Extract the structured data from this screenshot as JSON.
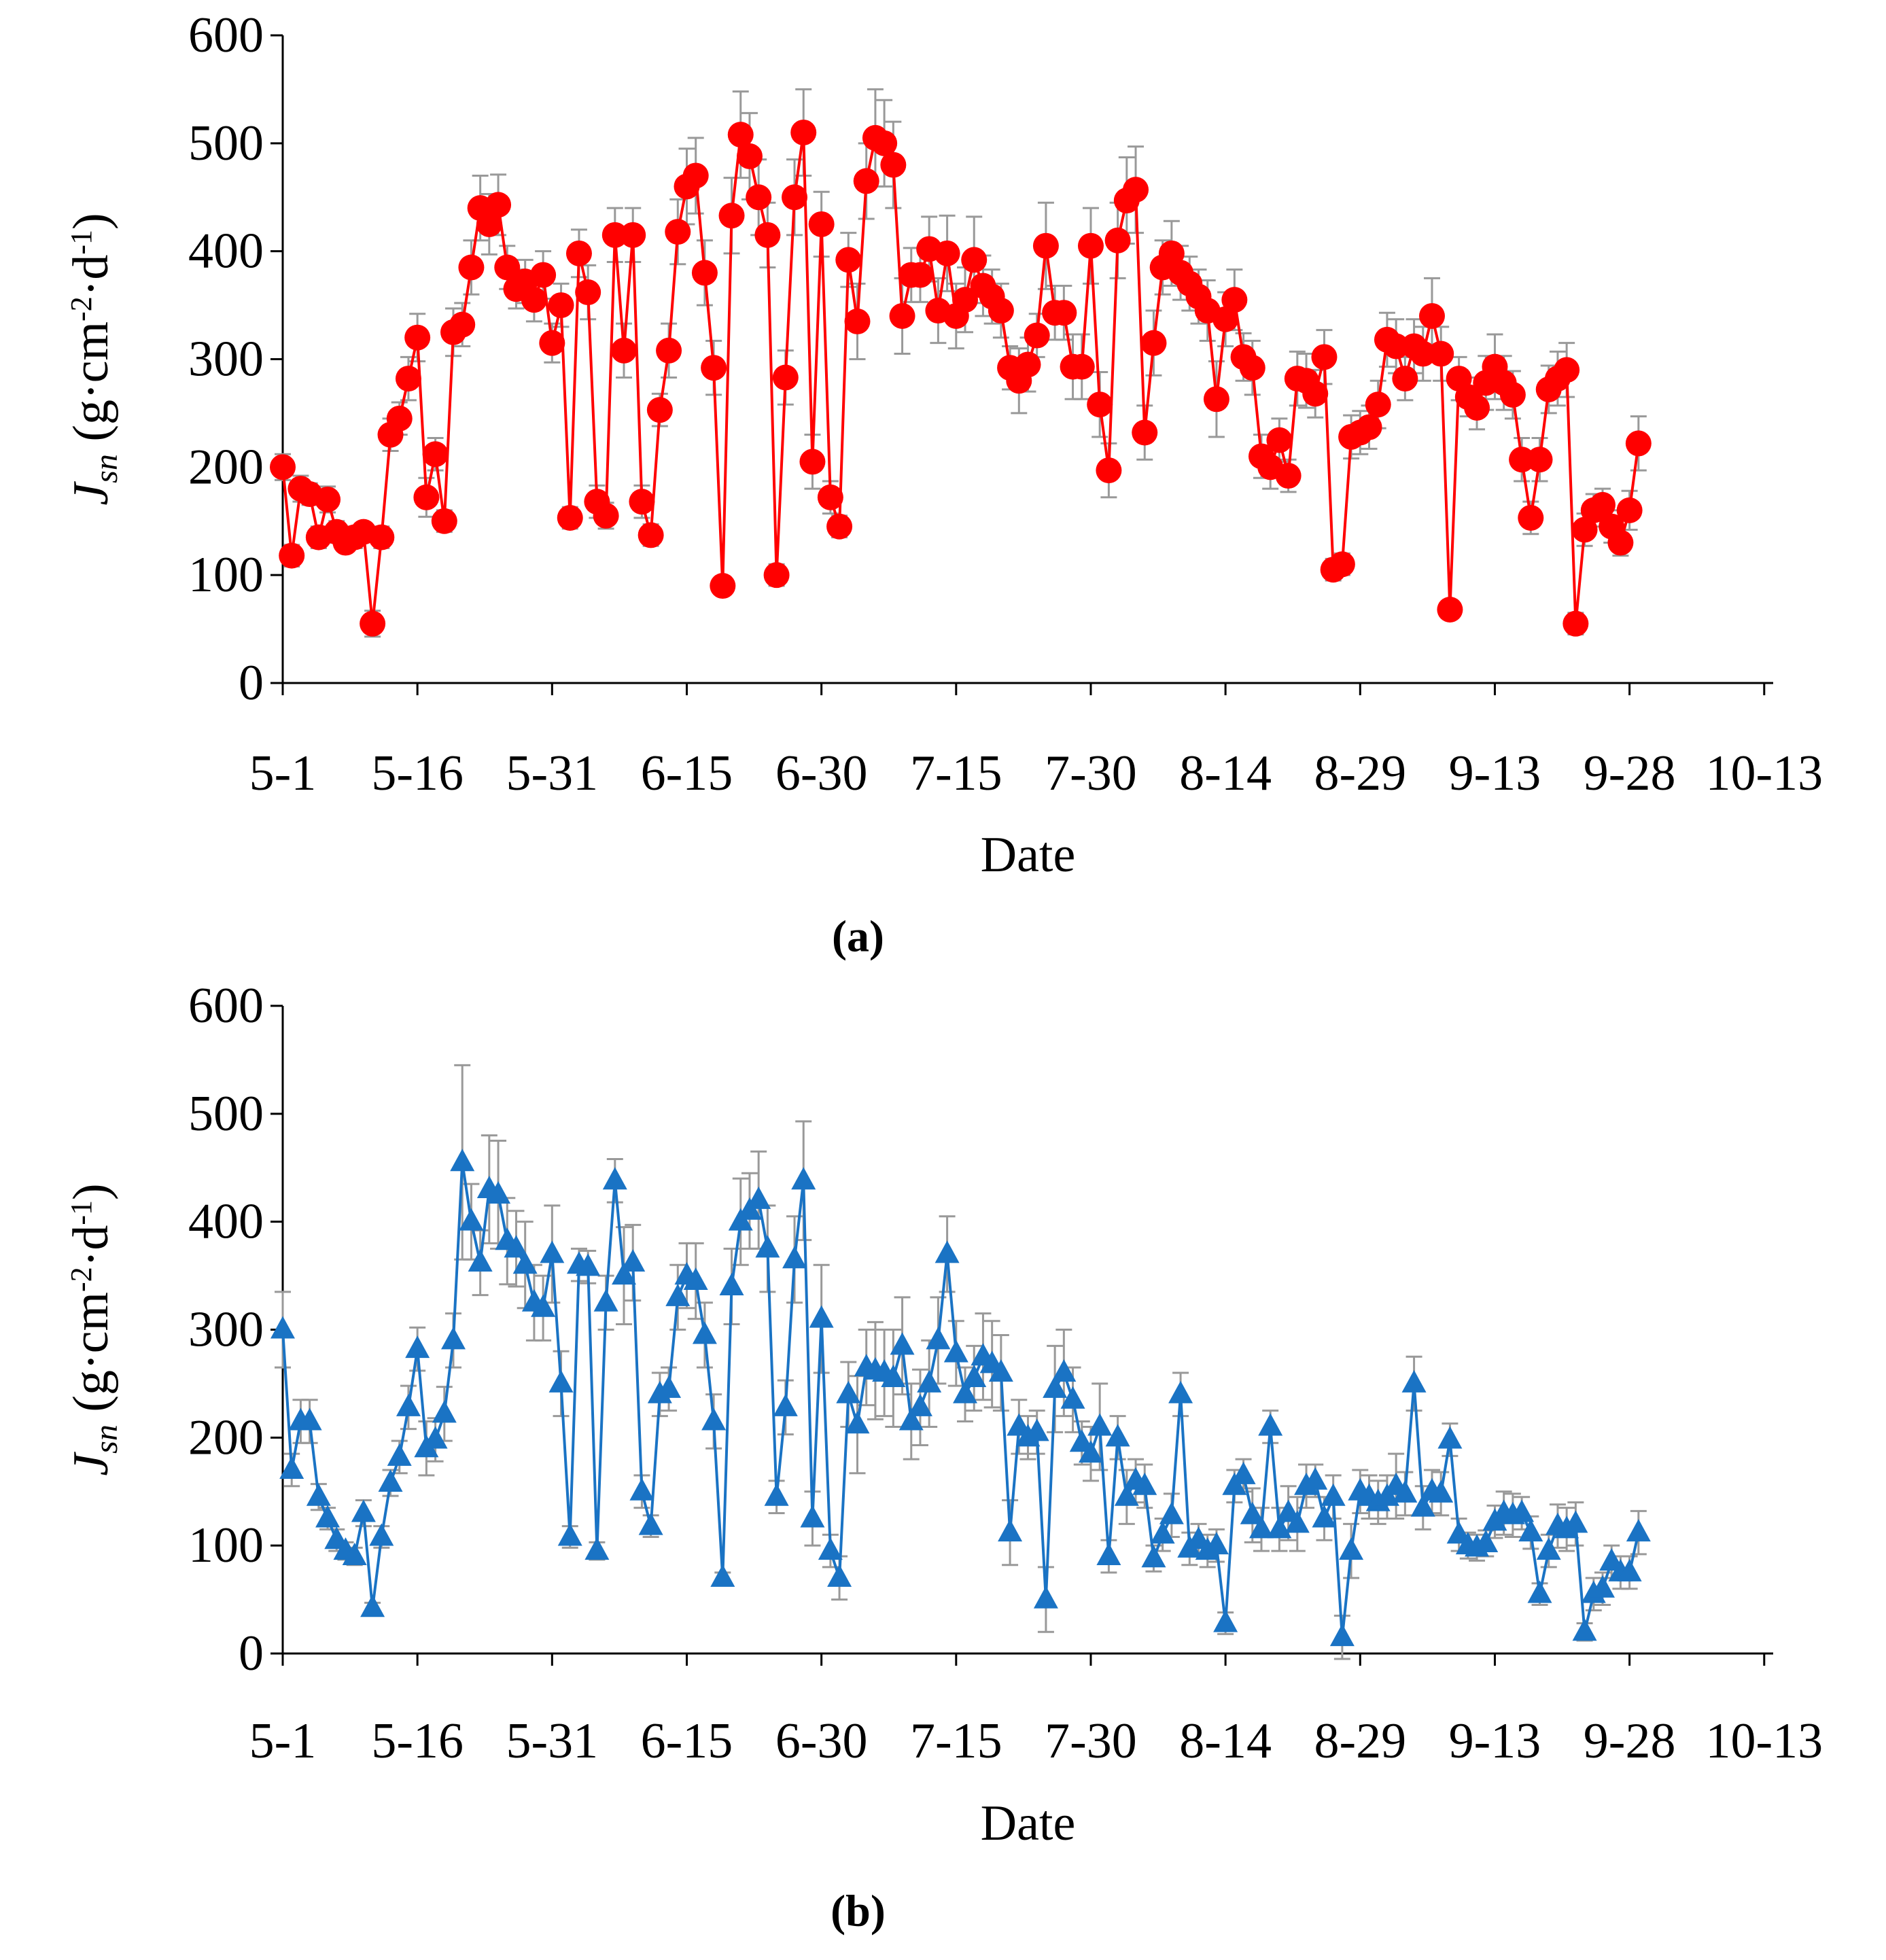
{
  "chart_data": [
    {
      "type": "line",
      "caption": "(a)",
      "xlabel": "Date",
      "ylabel": [
        "J",
        "sn",
        " (g·cm",
        "-2",
        "·d",
        "-1",
        ")"
      ],
      "xlim": [
        0,
        166
      ],
      "ylim": [
        0,
        600
      ],
      "yticks": [
        0,
        100,
        200,
        300,
        400,
        500,
        600
      ],
      "xticks": [
        {
          "value": 0,
          "label": "5-1"
        },
        {
          "value": 15,
          "label": "5-16"
        },
        {
          "value": 30,
          "label": "5-31"
        },
        {
          "value": 45,
          "label": "6-15"
        },
        {
          "value": 60,
          "label": "6-30"
        },
        {
          "value": 75,
          "label": "7-15"
        },
        {
          "value": 90,
          "label": "7-30"
        },
        {
          "value": 105,
          "label": "8-14"
        },
        {
          "value": 120,
          "label": "8-29"
        },
        {
          "value": 135,
          "label": "9-13"
        },
        {
          "value": 150,
          "label": "9-28"
        },
        {
          "value": 165,
          "label": "10-13"
        }
      ],
      "x": [
        0,
        1,
        2,
        3,
        4,
        5,
        6,
        7,
        8,
        9,
        10,
        11,
        12,
        13,
        14,
        15,
        16,
        17,
        18,
        19,
        20,
        21,
        22,
        23,
        24,
        25,
        26,
        27,
        28,
        29,
        30,
        31,
        32,
        33,
        34,
        35,
        36,
        37,
        38,
        39,
        40,
        41,
        42,
        43,
        44,
        45,
        46,
        47,
        48,
        49,
        50,
        51,
        52,
        53,
        54,
        55,
        56,
        57,
        58,
        59,
        60,
        61,
        62,
        63,
        64,
        65,
        66,
        67,
        68,
        69,
        70,
        71,
        72,
        73,
        74,
        75,
        76,
        77,
        78,
        79,
        80,
        81,
        82,
        83,
        84,
        85,
        86,
        87,
        88,
        89,
        90,
        91,
        92,
        93,
        94,
        95,
        96,
        97,
        98,
        99,
        100,
        101,
        102,
        103,
        104,
        105,
        106,
        107,
        108,
        109,
        110,
        111,
        112,
        113,
        114,
        115,
        116,
        117,
        118,
        119,
        120,
        121,
        122,
        123,
        124,
        125,
        126,
        127,
        128,
        129,
        130,
        131,
        132,
        133,
        134,
        135,
        136,
        137,
        138,
        139,
        140,
        141,
        142,
        143,
        144,
        145,
        146,
        147,
        148,
        149,
        150,
        151
      ],
      "series": [
        {
          "color": "#ff0000",
          "marker": "circle",
          "error_color": "#999999",
          "values": [
            200,
            118,
            180,
            175,
            135,
            170,
            140,
            130,
            135,
            140,
            55,
            135,
            230,
            245,
            282,
            320,
            172,
            212,
            150,
            325,
            332,
            385,
            440,
            425,
            443,
            385,
            365,
            372,
            355,
            378,
            315,
            350,
            153,
            398,
            362,
            168,
            155,
            415,
            308,
            415,
            168,
            137,
            253,
            308,
            418,
            460,
            470,
            380,
            292,
            90,
            433,
            508,
            488,
            450,
            415,
            100,
            283,
            450,
            510,
            205,
            425,
            172,
            145,
            392,
            335,
            465,
            505,
            500,
            480,
            340,
            378,
            378,
            402,
            345,
            398,
            340,
            355,
            392,
            368,
            358,
            345,
            292,
            280,
            295,
            322,
            405,
            343,
            343,
            293,
            293,
            405,
            258,
            197,
            410,
            447,
            457,
            232,
            315,
            385,
            398,
            380,
            370,
            358,
            345,
            263,
            337,
            355,
            302,
            292,
            210,
            200,
            225,
            192,
            282,
            280,
            268,
            302,
            105,
            110,
            228,
            232,
            237,
            258,
            318,
            312,
            282,
            312,
            305,
            340,
            305,
            68,
            282,
            265,
            255,
            278,
            293,
            278,
            267,
            207,
            153,
            207,
            272,
            282,
            290,
            55,
            142,
            160,
            165,
            145,
            130,
            160,
            222
          ],
          "errors": [
            12,
            10,
            12,
            10,
            10,
            12,
            10,
            8,
            10,
            8,
            12,
            10,
            15,
            15,
            20,
            22,
            18,
            15,
            10,
            22,
            20,
            25,
            30,
            28,
            28,
            20,
            18,
            20,
            20,
            22,
            18,
            20,
            10,
            22,
            25,
            15,
            12,
            25,
            25,
            25,
            15,
            10,
            15,
            25,
            30,
            35,
            35,
            30,
            25,
            8,
            35,
            40,
            40,
            35,
            30,
            10,
            25,
            35,
            40,
            25,
            30,
            15,
            10,
            25,
            35,
            35,
            45,
            40,
            40,
            35,
            25,
            25,
            30,
            30,
            35,
            30,
            30,
            40,
            28,
            25,
            25,
            20,
            30,
            25,
            20,
            40,
            25,
            25,
            30,
            30,
            35,
            30,
            25,
            35,
            40,
            40,
            25,
            30,
            25,
            30,
            25,
            25,
            25,
            28,
            35,
            25,
            28,
            22,
            25,
            20,
            20,
            20,
            15,
            25,
            25,
            22,
            25,
            10,
            10,
            20,
            20,
            20,
            22,
            25,
            25,
            20,
            25,
            25,
            35,
            25,
            8,
            20,
            18,
            20,
            25,
            30,
            25,
            22,
            20,
            15,
            20,
            22,
            25,
            25,
            10,
            15,
            15,
            15,
            15,
            12,
            18,
            25
          ]
        }
      ]
    },
    {
      "type": "line",
      "caption": "(b)",
      "xlabel": "Date",
      "ylabel": [
        "J",
        "sn",
        " (g·cm",
        "-2",
        "·d",
        "-1",
        ")"
      ],
      "xlim": [
        0,
        166
      ],
      "ylim": [
        0,
        600
      ],
      "yticks": [
        0,
        100,
        200,
        300,
        400,
        500,
        600
      ],
      "xticks": [
        {
          "value": 0,
          "label": "5-1"
        },
        {
          "value": 15,
          "label": "5-16"
        },
        {
          "value": 30,
          "label": "5-31"
        },
        {
          "value": 45,
          "label": "6-15"
        },
        {
          "value": 60,
          "label": "6-30"
        },
        {
          "value": 75,
          "label": "7-15"
        },
        {
          "value": 90,
          "label": "7-30"
        },
        {
          "value": 105,
          "label": "8-14"
        },
        {
          "value": 120,
          "label": "8-29"
        },
        {
          "value": 135,
          "label": "9-13"
        },
        {
          "value": 150,
          "label": "9-28"
        },
        {
          "value": 165,
          "label": "10-13"
        }
      ],
      "x": [
        0,
        1,
        2,
        3,
        4,
        5,
        6,
        7,
        8,
        9,
        10,
        11,
        12,
        13,
        14,
        15,
        16,
        17,
        18,
        19,
        20,
        21,
        22,
        23,
        24,
        25,
        26,
        27,
        28,
        29,
        30,
        31,
        32,
        33,
        34,
        35,
        36,
        37,
        38,
        39,
        40,
        41,
        42,
        43,
        44,
        45,
        46,
        47,
        48,
        49,
        50,
        51,
        52,
        53,
        54,
        55,
        56,
        57,
        58,
        59,
        60,
        61,
        62,
        63,
        64,
        65,
        66,
        67,
        68,
        69,
        70,
        71,
        72,
        73,
        74,
        75,
        76,
        77,
        78,
        79,
        80,
        81,
        82,
        83,
        84,
        85,
        86,
        87,
        88,
        89,
        90,
        91,
        92,
        93,
        94,
        95,
        96,
        97,
        98,
        99,
        100,
        101,
        102,
        103,
        104,
        105,
        106,
        107,
        108,
        109,
        110,
        111,
        112,
        113,
        114,
        115,
        116,
        117,
        118,
        119,
        120,
        121,
        122,
        123,
        124,
        125,
        126,
        127,
        128,
        129,
        130,
        131,
        132,
        133,
        134,
        135,
        136,
        137,
        138,
        139,
        140,
        141,
        142,
        143,
        144,
        145,
        146,
        147,
        148,
        149,
        150,
        151
      ],
      "series": [
        {
          "color": "#1a73c4",
          "marker": "triangle",
          "error_color": "#999999",
          "values": [
            300,
            170,
            215,
            215,
            145,
            125,
            105,
            95,
            90,
            130,
            42,
            108,
            158,
            182,
            228,
            282,
            190,
            198,
            222,
            290,
            455,
            400,
            362,
            430,
            425,
            382,
            375,
            360,
            325,
            320,
            370,
            250,
            108,
            360,
            358,
            95,
            325,
            438,
            350,
            362,
            150,
            118,
            240,
            245,
            330,
            350,
            345,
            295,
            215,
            70,
            340,
            400,
            410,
            420,
            375,
            145,
            228,
            365,
            438,
            125,
            310,
            95,
            70,
            240,
            212,
            265,
            262,
            260,
            255,
            285,
            215,
            228,
            250,
            290,
            370,
            278,
            240,
            255,
            275,
            268,
            260,
            112,
            210,
            200,
            205,
            50,
            245,
            260,
            235,
            195,
            185,
            210,
            90,
            200,
            145,
            160,
            155,
            88,
            110,
            128,
            240,
            97,
            105,
            95,
            100,
            28,
            155,
            165,
            128,
            115,
            210,
            115,
            130,
            120,
            155,
            160,
            125,
            145,
            15,
            95,
            150,
            145,
            140,
            145,
            155,
            148,
            250,
            135,
            150,
            148,
            198,
            110,
            100,
            98,
            102,
            122,
            130,
            128,
            130,
            112,
            55,
            95,
            118,
            115,
            120,
            20,
            55,
            60,
            85,
            75,
            75,
            112
          ],
          "errors": [
            35,
            15,
            20,
            20,
            12,
            10,
            10,
            8,
            8,
            12,
            5,
            10,
            12,
            15,
            20,
            20,
            25,
            20,
            25,
            25,
            90,
            35,
            30,
            50,
            50,
            40,
            35,
            40,
            35,
            30,
            45,
            30,
            10,
            15,
            15,
            8,
            25,
            20,
            45,
            35,
            15,
            10,
            20,
            20,
            30,
            30,
            35,
            30,
            25,
            5,
            35,
            40,
            35,
            45,
            40,
            15,
            25,
            40,
            55,
            25,
            50,
            15,
            20,
            30,
            45,
            35,
            45,
            40,
            45,
            45,
            35,
            35,
            40,
            40,
            35,
            30,
            25,
            30,
            40,
            40,
            35,
            30,
            25,
            20,
            20,
            30,
            40,
            40,
            30,
            20,
            25,
            40,
            15,
            20,
            25,
            20,
            20,
            12,
            15,
            20,
            20,
            15,
            15,
            15,
            15,
            10,
            15,
            15,
            25,
            20,
            15,
            20,
            25,
            25,
            20,
            15,
            20,
            20,
            20,
            25,
            20,
            20,
            20,
            20,
            30,
            20,
            25,
            20,
            20,
            20,
            15,
            15,
            12,
            12,
            12,
            15,
            20,
            20,
            15,
            15,
            10,
            15,
            20,
            20,
            20,
            8,
            15,
            15,
            15,
            15,
            15,
            20
          ]
        }
      ]
    }
  ]
}
